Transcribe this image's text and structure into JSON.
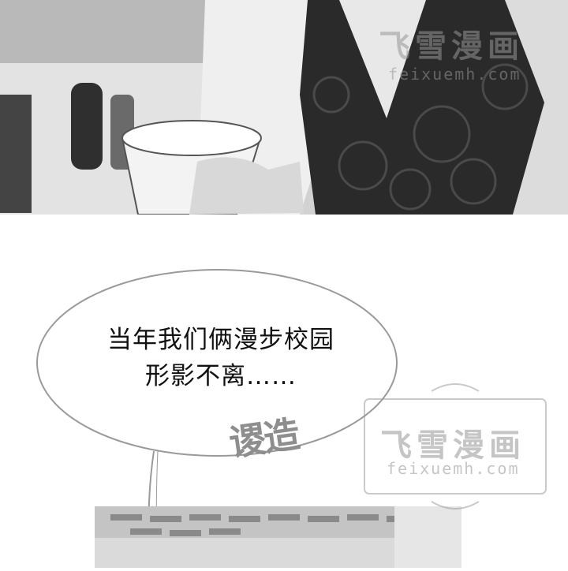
{
  "speech_bubble": {
    "line1": "当年我们俩漫步校园",
    "line2": "形影不离……"
  },
  "sound_effect": "谡造",
  "watermark": {
    "cn": "飞雪漫画",
    "en": "feixuemh.com"
  },
  "colors": {
    "panel_bg": "#cfcfcf",
    "dress": "#2a2a2a",
    "bubble_stroke": "#9a9a9a",
    "watermark": "#969696"
  }
}
